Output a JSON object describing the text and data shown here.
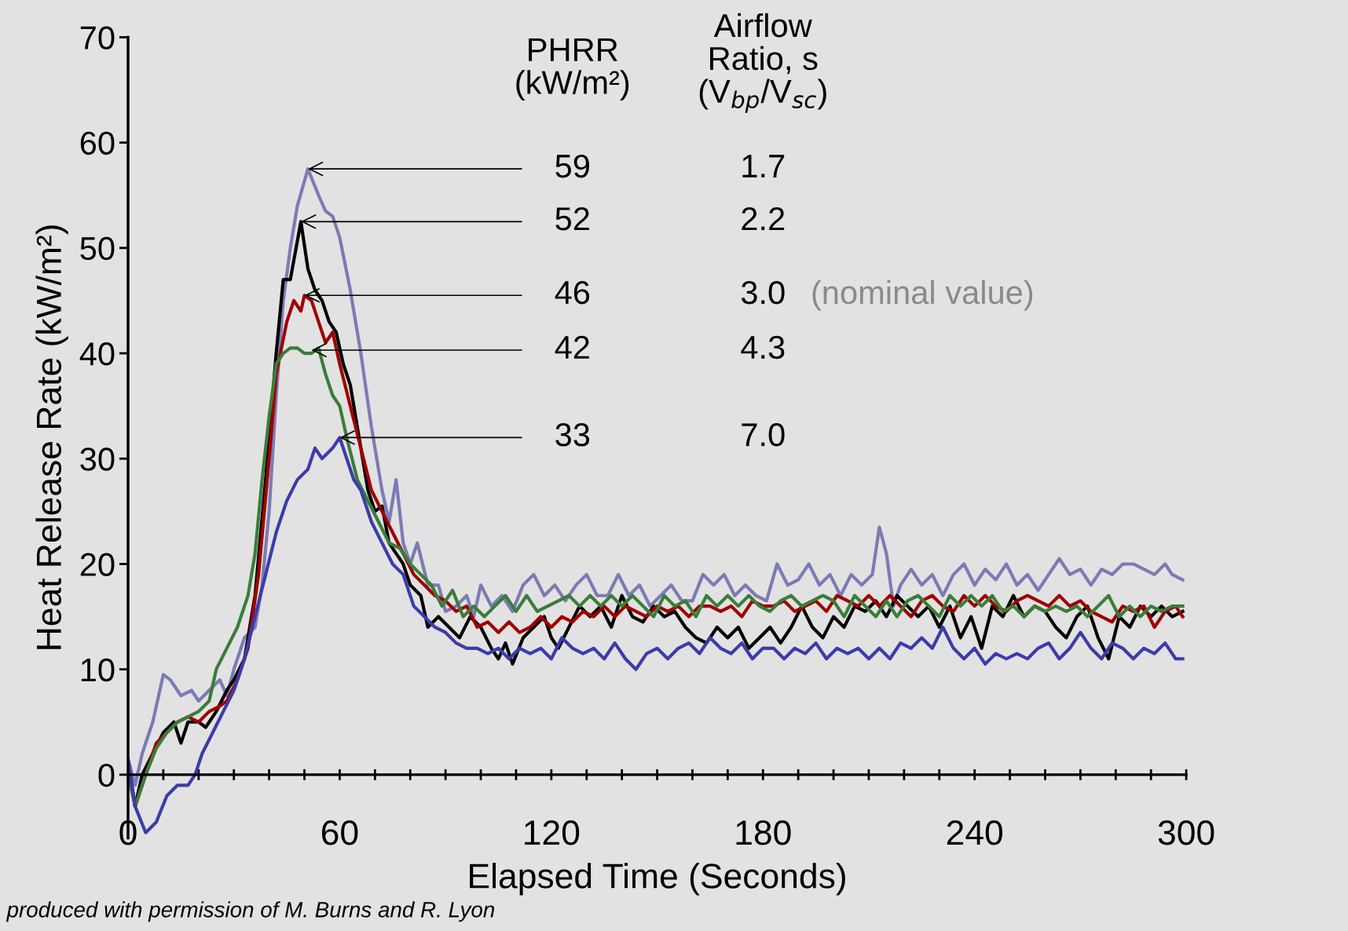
{
  "chart_data": {
    "type": "line",
    "xlabel": "Elapsed Time (Seconds)",
    "ylabel": "Heat Release Rate (kW/m²)",
    "xlim": [
      0,
      300
    ],
    "ylim": [
      -6,
      70
    ],
    "xticks": [
      0,
      {
        "value": 10,
        "label": null
      },
      {
        "value": 20,
        "label": null
      },
      {
        "value": 30,
        "label": null
      },
      {
        "value": 40,
        "label": null
      },
      {
        "value": 50,
        "label": null
      },
      60,
      {
        "value": 70,
        "label": null
      },
      {
        "value": 80,
        "label": null
      },
      {
        "value": 90,
        "label": null
      },
      {
        "value": 100,
        "label": null
      },
      {
        "value": 110,
        "label": null
      },
      120,
      {
        "value": 130,
        "label": null
      },
      {
        "value": 140,
        "label": null
      },
      {
        "value": 150,
        "label": null
      },
      {
        "value": 160,
        "label": null
      },
      {
        "value": 170,
        "label": null
      },
      180,
      {
        "value": 190,
        "label": null
      },
      {
        "value": 200,
        "label": null
      },
      {
        "value": 210,
        "label": null
      },
      {
        "value": 220,
        "label": null
      },
      {
        "value": 230,
        "label": null
      },
      240,
      {
        "value": 250,
        "label": null
      },
      {
        "value": 260,
        "label": null
      },
      {
        "value": 270,
        "label": null
      },
      {
        "value": 280,
        "label": null
      },
      {
        "value": 290,
        "label": null
      },
      300
    ],
    "yticks": [
      0,
      10,
      20,
      30,
      40,
      50,
      60,
      70
    ],
    "grid": false,
    "marker": "none",
    "line_style": "solid",
    "annotations": [
      "PHRR\n(kW/m²)",
      "Airflow\nRatio, s\n(V$_{bp}$/V$_{sc}$)",
      {
        "text": "59",
        "x": 51,
        "y": 57.5
      },
      {
        "text": "52",
        "x": 49,
        "y": 52.5
      },
      {
        "text": "46",
        "x": 50,
        "y": 45.5
      },
      {
        "text": "42",
        "x": 52,
        "y": 40.3
      },
      {
        "text": "33",
        "x": 60,
        "y": 32
      },
      "1.7",
      "2.2",
      "3.0",
      "4.3",
      "7.0",
      "(nominal value)",
      "produced with permission of M. Burns and R. Lyon"
    ],
    "series": [
      {
        "color": "#7b7bb5",
        "x": [
          0,
          2,
          4,
          7,
          10,
          12,
          15,
          18,
          20,
          23,
          26,
          28,
          30,
          33,
          36,
          38,
          40,
          42,
          44,
          46,
          48,
          51,
          54,
          56,
          58,
          60,
          63,
          66,
          69,
          72,
          74,
          76,
          78,
          80,
          82,
          85,
          88,
          90,
          93,
          96,
          98,
          100,
          103,
          106,
          109,
          112,
          115,
          118,
          121,
          124,
          127,
          130,
          133,
          136,
          139,
          142,
          145,
          148,
          151,
          154,
          157,
          160,
          163,
          166,
          169,
          172,
          175,
          178,
          181,
          184,
          187,
          190,
          193,
          196,
          199,
          202,
          205,
          208,
          211,
          213,
          215,
          217,
          219,
          222,
          225,
          228,
          231,
          234,
          237,
          240,
          243,
          246,
          249,
          252,
          255,
          258,
          261,
          264,
          267,
          270,
          273,
          276,
          279,
          282,
          285,
          288,
          291,
          294,
          296,
          299
        ],
        "values": [
          1.5,
          -1,
          2,
          5,
          9.5,
          9,
          7.5,
          8,
          7,
          8,
          9,
          7.5,
          10,
          13,
          14,
          18,
          25,
          36,
          45,
          50,
          54,
          57.5,
          55,
          53.5,
          53,
          51,
          46,
          40,
          33,
          27,
          24,
          28,
          22,
          20,
          22,
          18,
          18,
          15.5,
          16,
          17,
          15,
          18,
          16,
          17,
          15.5,
          18,
          19,
          17,
          18,
          16.5,
          18,
          19,
          17,
          17,
          19,
          17,
          18,
          16,
          17,
          18,
          16.5,
          16.5,
          19,
          18,
          19,
          17,
          18,
          17,
          16.5,
          20,
          18,
          18.5,
          20,
          18,
          19,
          17,
          19,
          18,
          19,
          23.5,
          21,
          16,
          18,
          19.5,
          18,
          19,
          17,
          19,
          20,
          18,
          19.5,
          18.5,
          20,
          18,
          19,
          17.5,
          19,
          20.5,
          19,
          19.5,
          18,
          19.5,
          19,
          20,
          20,
          19.5,
          19,
          20,
          19,
          18.5
        ]
      },
      {
        "color": "#000000",
        "x": [
          0,
          2,
          4,
          7,
          10,
          13,
          15,
          17,
          20,
          22,
          25,
          28,
          30,
          33,
          36,
          39,
          42,
          44,
          46,
          49,
          51,
          53,
          55,
          57,
          59,
          61,
          63,
          66,
          68,
          70,
          72,
          74,
          76,
          78,
          80,
          83,
          85,
          88,
          91,
          94,
          97,
          100,
          103,
          105,
          107,
          109,
          112,
          115,
          118,
          120,
          122,
          125,
          128,
          131,
          134,
          137,
          140,
          143,
          146,
          149,
          152,
          155,
          158,
          161,
          164,
          167,
          170,
          173,
          176,
          179,
          182,
          185,
          188,
          191,
          194,
          197,
          200,
          203,
          206,
          209,
          212,
          215,
          218,
          221,
          224,
          227,
          230,
          233,
          236,
          239,
          242,
          245,
          248,
          251,
          254,
          257,
          260,
          263,
          266,
          269,
          272,
          275,
          278,
          281,
          284,
          287,
          290,
          293,
          296,
          299
        ],
        "values": [
          1,
          -3,
          0,
          2,
          4,
          5,
          3,
          5,
          5,
          4.5,
          6,
          8,
          9,
          11,
          17,
          28,
          40,
          47,
          47,
          52.5,
          48,
          46,
          45,
          43,
          42,
          39,
          37,
          31,
          27,
          25,
          25.5,
          22,
          21,
          20,
          18,
          17,
          14,
          15,
          14,
          13,
          15,
          14,
          12,
          11,
          12.5,
          10.5,
          13,
          14,
          15,
          13,
          12,
          14,
          16,
          15,
          16,
          14,
          17,
          15,
          14.5,
          16,
          15,
          15.5,
          14,
          13,
          12.5,
          14,
          13,
          14,
          12,
          13,
          14,
          12.5,
          14,
          16,
          14,
          13,
          15,
          14,
          16,
          15.5,
          16.5,
          15,
          17,
          16,
          15,
          16,
          14,
          16,
          13,
          15,
          12,
          16,
          15,
          17,
          15,
          16,
          15.5,
          14,
          13,
          15,
          16,
          13,
          11,
          15,
          14,
          16,
          15,
          16,
          15,
          15.5
        ]
      },
      {
        "color": "#a00000",
        "x": [
          0,
          2,
          5,
          8,
          11,
          14,
          17,
          20,
          23,
          26,
          28,
          31,
          34,
          37,
          40,
          42,
          45,
          47,
          49,
          50,
          52,
          54,
          56,
          58,
          60,
          63,
          66,
          69,
          72,
          75,
          78,
          81,
          84,
          87,
          90,
          93,
          96,
          99,
          102,
          105,
          108,
          111,
          114,
          117,
          120,
          123,
          126,
          129,
          132,
          135,
          138,
          141,
          144,
          147,
          150,
          153,
          156,
          159,
          162,
          165,
          168,
          171,
          174,
          177,
          180,
          183,
          186,
          189,
          192,
          195,
          198,
          201,
          204,
          207,
          210,
          213,
          216,
          219,
          222,
          225,
          228,
          231,
          234,
          237,
          240,
          243,
          246,
          249,
          252,
          255,
          258,
          261,
          264,
          267,
          270,
          273,
          276,
          279,
          282,
          285,
          288,
          291,
          294,
          297,
          299
        ],
        "values": [
          1,
          -3,
          0,
          3,
          4,
          5,
          5.5,
          5,
          6,
          6.5,
          7,
          9,
          12,
          19,
          30,
          38,
          43,
          45,
          44,
          45.5,
          45,
          43,
          41,
          42,
          39,
          35,
          31,
          27,
          25,
          23,
          21,
          19,
          18,
          17,
          16.5,
          15.5,
          16,
          14,
          14.5,
          13.5,
          14.5,
          13.5,
          14,
          15,
          14,
          15,
          14.5,
          15.5,
          15,
          16,
          15,
          16,
          15.5,
          15,
          16,
          15.5,
          16,
          15,
          16,
          16,
          15.5,
          16,
          15,
          16.5,
          16,
          16,
          16.5,
          15.5,
          16,
          16.5,
          15.5,
          17,
          16.5,
          16,
          17,
          16,
          17,
          16,
          15,
          16.5,
          17,
          16,
          15.5,
          17,
          16,
          17,
          16,
          15.5,
          16.5,
          17,
          16.5,
          16,
          17,
          16,
          16.5,
          15.5,
          15,
          14.5,
          16,
          15.5,
          16,
          14,
          15.5,
          16,
          15
        ]
      },
      {
        "color": "#3a7d3a",
        "x": [
          0,
          2,
          5,
          8,
          11,
          14,
          17,
          20,
          23,
          25,
          28,
          31,
          34,
          36,
          38,
          40,
          42,
          44,
          46,
          48,
          50,
          52,
          54,
          56,
          58,
          60,
          62,
          65,
          68,
          71,
          74,
          77,
          80,
          83,
          86,
          89,
          92,
          95,
          98,
          101,
          104,
          107,
          110,
          113,
          116,
          119,
          122,
          125,
          128,
          131,
          134,
          137,
          140,
          143,
          146,
          149,
          152,
          155,
          158,
          161,
          164,
          167,
          170,
          173,
          176,
          179,
          182,
          185,
          188,
          191,
          194,
          197,
          200,
          203,
          206,
          209,
          212,
          215,
          218,
          221,
          224,
          227,
          230,
          233,
          236,
          239,
          242,
          245,
          248,
          251,
          254,
          257,
          260,
          263,
          266,
          269,
          272,
          275,
          278,
          281,
          284,
          287,
          290,
          293,
          296,
          299
        ],
        "values": [
          0,
          -3,
          0,
          2.5,
          4,
          5,
          5.5,
          6,
          7,
          10,
          12,
          14,
          17,
          21,
          28,
          34,
          39,
          40,
          40.5,
          40.5,
          40,
          40,
          40.5,
          38,
          36,
          35,
          32,
          28,
          26,
          24,
          22,
          21.5,
          20,
          19,
          18,
          16,
          17.5,
          15,
          16,
          15,
          16,
          17,
          15.5,
          17,
          15.5,
          16,
          16.5,
          17,
          16,
          17,
          16,
          17,
          16,
          17,
          16,
          15,
          17,
          16,
          16.5,
          15,
          17,
          16,
          17,
          16,
          17,
          16,
          15.5,
          16.5,
          17,
          16,
          16.5,
          17,
          16.5,
          15,
          17,
          16,
          15,
          16.5,
          15,
          16.5,
          17,
          16,
          15,
          17,
          16,
          17,
          16,
          17,
          15.5,
          16,
          15,
          16,
          15.5,
          16,
          15.5,
          16,
          15,
          16,
          17,
          15,
          16,
          15,
          16,
          15.5,
          16,
          16
        ]
      },
      {
        "color": "#3c3caa",
        "x": [
          0,
          2,
          5,
          8,
          11,
          14,
          17,
          19,
          21,
          24,
          27,
          30,
          33,
          36,
          39,
          42,
          45,
          48,
          51,
          53,
          55,
          58,
          60,
          62,
          64,
          66,
          69,
          72,
          75,
          78,
          81,
          84,
          87,
          90,
          93,
          96,
          99,
          102,
          105,
          108,
          111,
          114,
          117,
          120,
          123,
          126,
          129,
          132,
          135,
          138,
          141,
          144,
          147,
          150,
          153,
          156,
          159,
          162,
          165,
          168,
          171,
          174,
          177,
          180,
          183,
          186,
          189,
          192,
          195,
          198,
          201,
          204,
          207,
          210,
          213,
          216,
          219,
          222,
          225,
          228,
          231,
          234,
          237,
          240,
          243,
          246,
          249,
          252,
          255,
          258,
          261,
          264,
          267,
          270,
          273,
          276,
          279,
          282,
          285,
          288,
          291,
          294,
          297,
          299
        ],
        "values": [
          1.5,
          -3,
          -5.5,
          -4.5,
          -2,
          -1,
          -1,
          0,
          2,
          4,
          6,
          8,
          11,
          15,
          19,
          23,
          26,
          28,
          29,
          31,
          30,
          31,
          32,
          30,
          28,
          27,
          24,
          22,
          20,
          19,
          16,
          15,
          14,
          13.5,
          12.5,
          12,
          12,
          11.5,
          12,
          11,
          12,
          11.5,
          12,
          11,
          13,
          12,
          11.5,
          12,
          11,
          12.5,
          11,
          10,
          11.5,
          12,
          11,
          12,
          12.5,
          11.5,
          13,
          12,
          11.5,
          12.5,
          11,
          12,
          12,
          11,
          12,
          11.5,
          12.5,
          11,
          12,
          11.5,
          12,
          11,
          12,
          11,
          12.5,
          12,
          13,
          12,
          14,
          12,
          11,
          12,
          10.5,
          11.5,
          11,
          11.5,
          11,
          12,
          12.5,
          11,
          12,
          13.5,
          12,
          11,
          12.5,
          12,
          11,
          12,
          11.5,
          12.5,
          11,
          11
        ]
      }
    ]
  }
}
